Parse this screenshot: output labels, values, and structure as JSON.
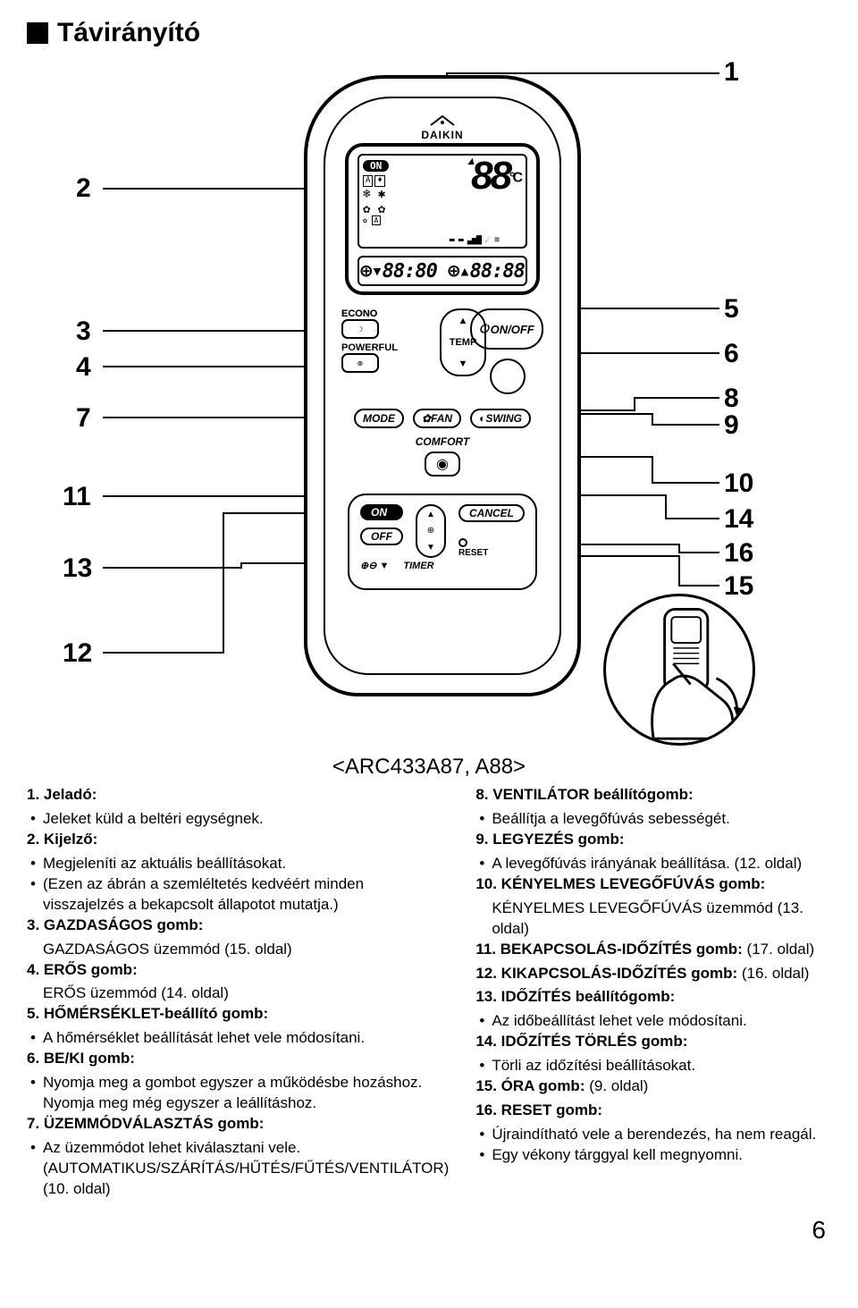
{
  "title": "Távirányító",
  "model_code": "<ARC433A87, A88>",
  "page_number": "6",
  "remote": {
    "brand": "DAIKIN",
    "lcd": {
      "on_badge": "ON",
      "reading": "88",
      "unit": "°C",
      "timer_display": "⊕▾88:80 ⊕▴88:88"
    },
    "labels": {
      "econo": "ECONO",
      "powerful": "POWERFUL",
      "temp": "TEMP",
      "onoff": "ON/OFF",
      "mode": "MODE",
      "fan": "FAN",
      "swing": "SWING",
      "comfort": "COMFORT",
      "on": "ON",
      "off": "OFF",
      "cancel": "CANCEL",
      "timer": "TIMER",
      "reset": "RESET"
    }
  },
  "callouts": {
    "1": "1",
    "2": "2",
    "3": "3",
    "4": "4",
    "5": "5",
    "6": "6",
    "7": "7",
    "8": "8",
    "9": "9",
    "10": "10",
    "11": "11",
    "12": "12",
    "13": "13",
    "14": "14",
    "15": "15",
    "16": "16"
  },
  "left_column": [
    {
      "num": "1.",
      "title": "Jeladó:",
      "bullets": [
        "Jeleket küld a beltéri egységnek."
      ]
    },
    {
      "num": "2.",
      "title": "Kijelző:",
      "bullets": [
        "Megjeleníti az aktuális beállításokat.",
        "(Ezen az ábrán a szemléltetés kedvéért minden visszajelzés a bekapcsolt állapotot mutatja.)"
      ]
    },
    {
      "num": "3.",
      "title": "GAZDASÁGOS gomb:",
      "plain": [
        "GAZDASÁGOS üzemmód (15. oldal)"
      ]
    },
    {
      "num": "4.",
      "title": "ERŐS gomb:",
      "plain": [
        "ERŐS üzemmód (14. oldal)"
      ]
    },
    {
      "num": "5.",
      "title": "HŐMÉRSÉKLET-beállító gomb:",
      "bullets": [
        "A hőmérséklet beállítását lehet vele módosítani."
      ]
    },
    {
      "num": "6.",
      "title": "BE/KI gomb:",
      "bullets": [
        "Nyomja meg a gombot egyszer a működésbe hozáshoz. Nyomja meg még egyszer a leállításhoz."
      ]
    },
    {
      "num": "7.",
      "title": "ÜZEMMÓDVÁLASZTÁS gomb:",
      "bullets": [
        "Az üzemmódot lehet kiválasztani vele. (AUTOMATIKUS/SZÁRÍTÁS/HŰTÉS/FŰTÉS/VENTILÁTOR) (10. oldal)"
      ]
    }
  ],
  "right_column": [
    {
      "num": "8.",
      "title": "VENTILÁTOR beállítógomb:",
      "bullets": [
        "Beállítja a levegőfúvás sebességét."
      ]
    },
    {
      "num": "9.",
      "title": "LEGYEZÉS gomb:",
      "bullets": [
        "A levegőfúvás irányának beállítása. (12. oldal)"
      ]
    },
    {
      "num": "10.",
      "title": "KÉNYELMES LEVEGŐFÚVÁS gomb:",
      "plain": [
        "KÉNYELMES LEVEGŐFÚVÁS üzemmód (13. oldal)"
      ]
    },
    {
      "num": "11.",
      "title": "BEKAPCSOLÁS-IDŐZÍTÉS gomb:",
      "inline": "(17. oldal)"
    },
    {
      "num": "12.",
      "title": "KIKAPCSOLÁS-IDŐZÍTÉS gomb:",
      "inline": "(16. oldal)"
    },
    {
      "num": "13.",
      "title": "IDŐZÍTÉS beállítógomb:",
      "bullets": [
        "Az időbeállítást lehet vele módosítani."
      ]
    },
    {
      "num": "14.",
      "title": "IDŐZÍTÉS TÖRLÉS gomb:",
      "bullets": [
        "Törli az időzítési beállításokat."
      ]
    },
    {
      "num": "15.",
      "title": "ÓRA gomb:",
      "inline": "(9. oldal)"
    },
    {
      "num": "16.",
      "title": "RESET gomb:",
      "bullets": [
        "Újraindítható vele a berendezés, ha nem reagál.",
        "Egy vékony tárggyal kell megnyomni."
      ]
    }
  ]
}
